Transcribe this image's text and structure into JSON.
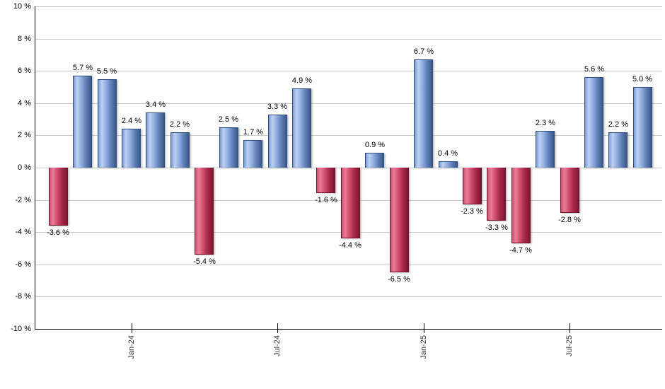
{
  "chart_data": {
    "type": "bar",
    "title": "",
    "xlabel": "",
    "ylabel": "",
    "ylim": [
      -10,
      10
    ],
    "y_tick_interval": 2,
    "y_tick_labels": [
      "10 %",
      "8 %",
      "6 %",
      "4 %",
      "2 %",
      "0 %",
      "-2 %",
      "-4 %",
      "-6 %",
      "-8 %",
      "-10 %"
    ],
    "grid": "horizontal-only",
    "legend_position": "none",
    "bars": [
      {
        "value": -3.6,
        "label": "-3.6 %"
      },
      {
        "value": 5.7,
        "label": "5.7 %"
      },
      {
        "value": 5.5,
        "label": "5.5 %"
      },
      {
        "value": 2.4,
        "label": "2.4 %"
      },
      {
        "value": 3.4,
        "label": "3.4 %"
      },
      {
        "value": 2.2,
        "label": "2.2 %"
      },
      {
        "value": -5.4,
        "label": "-5.4 %"
      },
      {
        "value": 2.5,
        "label": "2.5 %"
      },
      {
        "value": 1.7,
        "label": "1.7 %"
      },
      {
        "value": 3.3,
        "label": "3.3 %"
      },
      {
        "value": 4.9,
        "label": "4.9 %"
      },
      {
        "value": -1.6,
        "label": "-1.6 %"
      },
      {
        "value": -4.4,
        "label": "-4.4 %"
      },
      {
        "value": 0.9,
        "label": "0.9 %"
      },
      {
        "value": -6.5,
        "label": "-6.5 %"
      },
      {
        "value": 6.7,
        "label": "6.7 %"
      },
      {
        "value": 0.4,
        "label": "0.4 %"
      },
      {
        "value": -2.3,
        "label": "-2.3 %"
      },
      {
        "value": -3.3,
        "label": "-3.3 %"
      },
      {
        "value": -4.7,
        "label": "-4.7 %"
      },
      {
        "value": 2.3,
        "label": "2.3 %"
      },
      {
        "value": -2.8,
        "label": "-2.8 %"
      },
      {
        "value": 5.6,
        "label": "5.6 %"
      },
      {
        "value": 2.2,
        "label": "2.2 %"
      },
      {
        "value": 5.0,
        "label": "5.0 %"
      }
    ],
    "x_tick_labels": [
      {
        "label": "Jan-24",
        "bar_index": 3
      },
      {
        "label": "Jul-24",
        "bar_index": 9
      },
      {
        "label": "Jan-25",
        "bar_index": 15
      },
      {
        "label": "Jul-25",
        "bar_index": 21
      }
    ],
    "colors": {
      "positive_bar": "#6f92cc",
      "negative_bar": "#c13a60",
      "gridline": "#c9c9c9",
      "axis": "#000000",
      "value_label_text": "#000000",
      "tick_label_text": "#333333",
      "background": "#ffffff"
    }
  }
}
